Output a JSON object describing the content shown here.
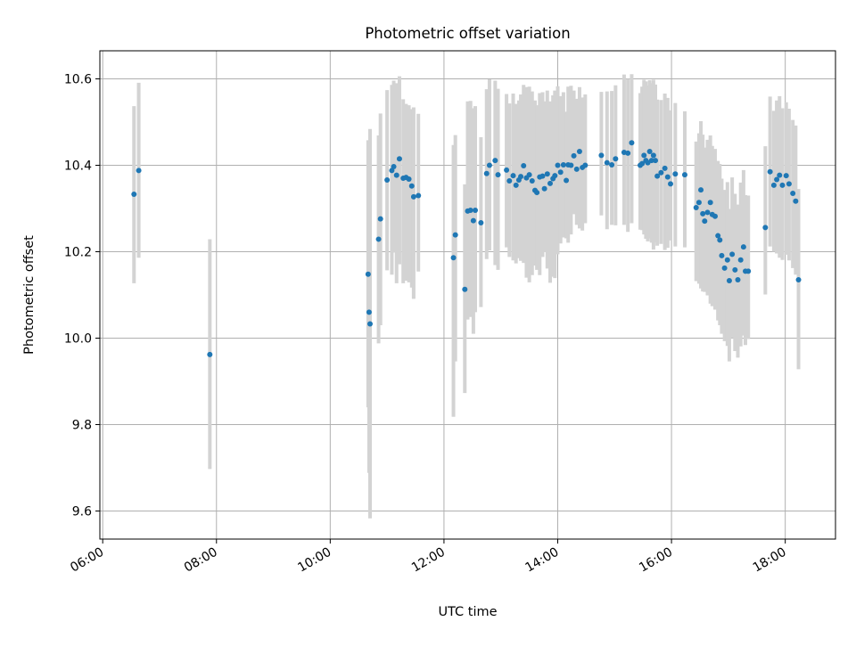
{
  "chart_data": {
    "type": "scatter",
    "title": "Photometric offset variation",
    "xlabel": "UTC time",
    "ylabel": "Photometric offset",
    "x_ticks": [
      "06:00",
      "08:00",
      "10:00",
      "12:00",
      "14:00",
      "16:00",
      "18:00"
    ],
    "y_ticks": [
      "9.6",
      "9.8",
      "10.0",
      "10.2",
      "10.4",
      "10.6"
    ],
    "xlim": [
      "05:57",
      "18:53"
    ],
    "ylim": [
      9.535,
      10.665
    ],
    "grid": true,
    "legend": "none",
    "colors": {
      "point": "#1f77b4",
      "errorbar": "#d3d3d3",
      "grid": "#b0b0b0"
    },
    "series": [
      {
        "x": [
          "06:33",
          "06:38",
          "07:53",
          "10:40",
          "10:41",
          "10:42",
          "10:51",
          "10:53",
          "11:00",
          "11:05",
          "11:07",
          "11:10",
          "11:13",
          "11:17",
          "11:20",
          "11:23",
          "11:26",
          "11:28",
          "11:33",
          "12:10",
          "12:12",
          "12:22",
          "12:25",
          "12:28",
          "12:31",
          "12:33",
          "12:39",
          "12:45",
          "12:48",
          "12:54",
          "12:57",
          "13:06",
          "13:09",
          "13:13",
          "13:16",
          "13:19",
          "13:21",
          "13:24",
          "13:27",
          "13:30",
          "13:33",
          "13:36",
          "13:38",
          "13:41",
          "13:44",
          "13:46",
          "13:49",
          "13:52",
          "13:55",
          "13:57",
          "14:00",
          "14:03",
          "14:06",
          "14:09",
          "14:11",
          "14:14",
          "14:17",
          "14:20",
          "14:23",
          "14:26",
          "14:29",
          "14:46",
          "14:52",
          "14:57",
          "15:01",
          "15:10",
          "15:14",
          "15:18",
          "15:27",
          "15:29",
          "15:31",
          "15:33",
          "15:35",
          "15:37",
          "15:39",
          "15:41",
          "15:43",
          "15:45",
          "15:49",
          "15:53",
          "15:56",
          "15:59",
          "16:04",
          "16:14",
          "16:26",
          "16:29",
          "16:31",
          "16:33",
          "16:35",
          "16:38",
          "16:41",
          "16:43",
          "16:46",
          "16:49",
          "16:51",
          "16:53",
          "16:56",
          "16:59",
          "17:01",
          "17:04",
          "17:07",
          "17:10",
          "17:13",
          "17:16",
          "17:18",
          "17:21",
          "17:39",
          "17:44",
          "17:48",
          "17:51",
          "17:54",
          "17:57",
          "18:01",
          "18:04",
          "18:08",
          "18:11",
          "18:14"
        ],
        "y": [
          10.333,
          10.388,
          9.962,
          10.148,
          10.06,
          10.033,
          10.229,
          10.276,
          10.366,
          10.388,
          10.397,
          10.377,
          10.415,
          10.37,
          10.372,
          10.368,
          10.352,
          10.327,
          10.33,
          10.186,
          10.239,
          10.113,
          10.294,
          10.296,
          10.272,
          10.296,
          10.267,
          10.381,
          10.4,
          10.411,
          10.378,
          10.389,
          10.364,
          10.376,
          10.354,
          10.366,
          10.374,
          10.399,
          10.371,
          10.378,
          10.364,
          10.342,
          10.337,
          10.373,
          10.375,
          10.346,
          10.38,
          10.358,
          10.369,
          10.376,
          10.4,
          10.384,
          10.401,
          10.365,
          10.401,
          10.4,
          10.422,
          10.391,
          10.432,
          10.395,
          10.4,
          10.423,
          10.406,
          10.401,
          10.415,
          10.43,
          10.428,
          10.452,
          10.4,
          10.404,
          10.423,
          10.411,
          10.406,
          10.432,
          10.411,
          10.423,
          10.411,
          10.375,
          10.383,
          10.393,
          10.373,
          10.357,
          10.38,
          10.378,
          10.302,
          10.314,
          10.343,
          10.288,
          10.271,
          10.291,
          10.314,
          10.286,
          10.282,
          10.237,
          10.227,
          10.191,
          10.162,
          10.181,
          10.133,
          10.194,
          10.158,
          10.135,
          10.181,
          10.211,
          10.155,
          10.155,
          10.256,
          10.385,
          10.354,
          10.367,
          10.377,
          10.354,
          10.376,
          10.357,
          10.335,
          10.317,
          10.135
        ],
        "y_err_low": [
          10.127,
          10.186,
          9.697,
          9.84,
          9.688,
          9.583,
          9.988,
          10.03,
          10.157,
          10.147,
          10.198,
          10.127,
          10.171,
          10.127,
          10.133,
          10.129,
          10.117,
          10.091,
          10.154,
          9.818,
          9.946,
          9.873,
          10.043,
          10.049,
          10.01,
          10.06,
          10.072,
          10.183,
          10.203,
          10.169,
          10.158,
          10.21,
          10.188,
          10.18,
          10.173,
          10.185,
          10.179,
          10.174,
          10.14,
          10.129,
          10.146,
          10.168,
          10.158,
          10.146,
          10.188,
          10.199,
          10.161,
          10.128,
          10.142,
          10.139,
          10.194,
          10.219,
          10.233,
          10.231,
          10.221,
          10.24,
          10.287,
          10.262,
          10.254,
          10.249,
          10.266,
          10.284,
          10.252,
          10.262,
          10.261,
          10.262,
          10.246,
          10.266,
          10.251,
          10.25,
          10.24,
          10.23,
          10.224,
          10.231,
          10.221,
          10.205,
          10.222,
          10.214,
          10.218,
          10.204,
          10.209,
          10.226,
          10.212,
          10.21,
          10.132,
          10.126,
          10.115,
          10.108,
          10.107,
          10.099,
          10.08,
          10.074,
          10.066,
          10.041,
          10.03,
          10.01,
          9.993,
          9.982,
          9.946,
          10.0,
          9.97,
          9.955,
          9.981,
          10.006,
          9.984,
          9.998,
          10.101,
          10.212,
          10.2,
          10.196,
          10.186,
          10.181,
          10.193,
          10.18,
          10.162,
          10.147,
          9.928
        ],
        "y_err_high": [
          10.537,
          10.591,
          10.229,
          10.458,
          10.434,
          10.484,
          10.469,
          10.52,
          10.574,
          10.586,
          10.596,
          10.59,
          10.606,
          10.553,
          10.542,
          10.539,
          10.53,
          10.534,
          10.519,
          10.447,
          10.47,
          10.356,
          10.548,
          10.549,
          10.532,
          10.537,
          10.465,
          10.576,
          10.599,
          10.596,
          10.577,
          10.565,
          10.543,
          10.566,
          10.542,
          10.55,
          10.564,
          10.586,
          10.581,
          10.582,
          10.571,
          10.55,
          10.539,
          10.567,
          10.569,
          10.548,
          10.573,
          10.548,
          10.562,
          10.573,
          10.583,
          10.56,
          10.569,
          10.524,
          10.582,
          10.584,
          10.573,
          10.554,
          10.581,
          10.557,
          10.564,
          10.57,
          10.571,
          10.572,
          10.585,
          10.61,
          10.6,
          10.611,
          10.567,
          10.582,
          10.598,
          10.594,
          10.585,
          10.597,
          10.59,
          10.598,
          10.587,
          10.552,
          10.551,
          10.566,
          10.556,
          10.527,
          10.544,
          10.525,
          10.455,
          10.474,
          10.502,
          10.471,
          10.441,
          10.459,
          10.469,
          10.445,
          10.438,
          10.41,
          10.403,
          10.369,
          10.343,
          10.361,
          10.299,
          10.372,
          10.334,
          10.309,
          10.36,
          10.389,
          10.331,
          10.33,
          10.444,
          10.559,
          10.526,
          10.55,
          10.56,
          10.532,
          10.546,
          10.531,
          10.505,
          10.492,
          10.345
        ]
      }
    ]
  }
}
